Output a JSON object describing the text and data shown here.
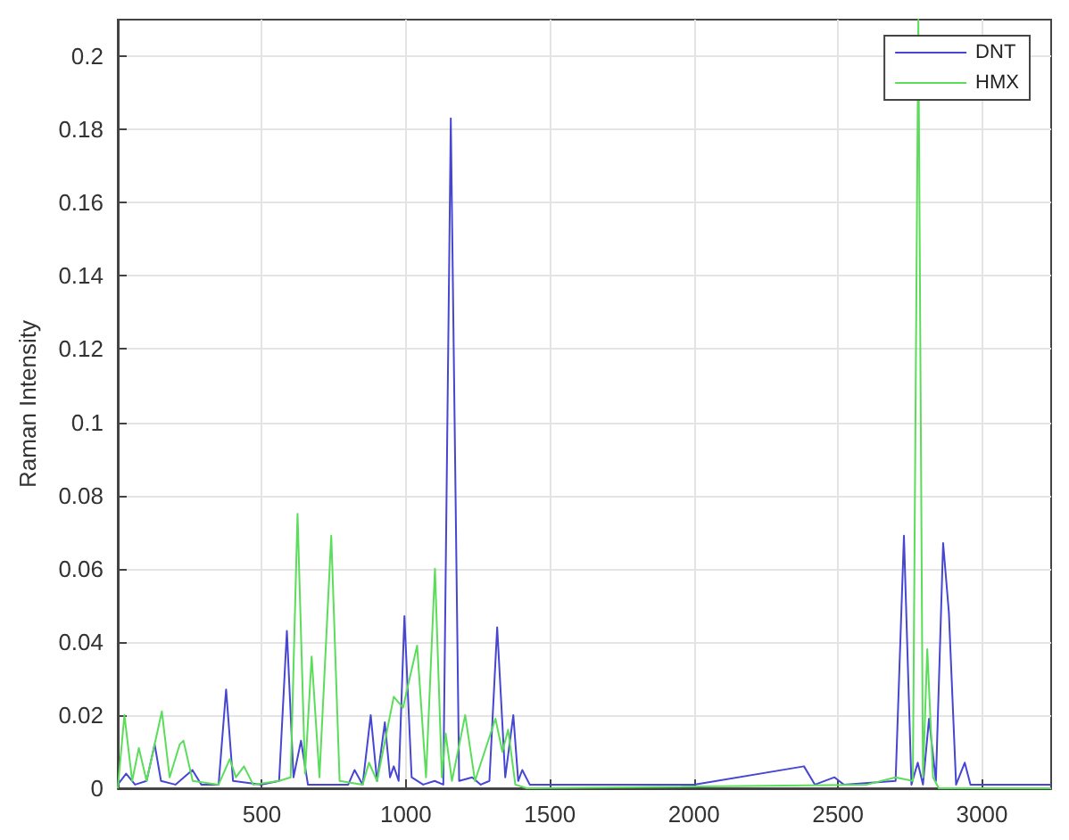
{
  "chart_data": {
    "type": "line",
    "ylabel": "Raman Intensity",
    "series": [
      {
        "name": "DNT",
        "color": "#4646d2",
        "x": [
          0,
          29,
          60,
          100,
          128,
          150,
          200,
          259,
          290,
          350,
          376,
          400,
          500,
          560,
          587,
          610,
          636,
          660,
          750,
          800,
          822,
          850,
          878,
          900,
          927,
          945,
          958,
          975,
          995,
          1020,
          1060,
          1100,
          1130,
          1156,
          1185,
          1230,
          1260,
          1290,
          1317,
          1345,
          1373,
          1390,
          1404,
          1430,
          2000,
          2382,
          2420,
          2488,
          2520,
          2700,
          2729,
          2755,
          2777,
          2795,
          2816,
          2840,
          2865,
          2885,
          2910,
          2940,
          2960,
          3240
        ],
        "values": [
          0.001,
          0.004,
          0.001,
          0.002,
          0.012,
          0.002,
          0.001,
          0.005,
          0.001,
          0.001,
          0.027,
          0.002,
          0.001,
          0.002,
          0.043,
          0.003,
          0.013,
          0.001,
          0.001,
          0.001,
          0.005,
          0.001,
          0.02,
          0.002,
          0.018,
          0.003,
          0.006,
          0.002,
          0.047,
          0.003,
          0.001,
          0.002,
          0.001,
          0.183,
          0.002,
          0.003,
          0.001,
          0.002,
          0.044,
          0.003,
          0.02,
          0.002,
          0.005,
          0.001,
          0.001,
          0.006,
          0.001,
          0.003,
          0.001,
          0.002,
          0.069,
          0.001,
          0.007,
          0.001,
          0.019,
          0.002,
          0.067,
          0.048,
          0.001,
          0.007,
          0.001,
          0.001
        ]
      },
      {
        "name": "HMX",
        "color": "#5ade5a",
        "x": [
          0,
          23,
          50,
          73,
          100,
          153,
          180,
          215,
          228,
          260,
          350,
          389,
          410,
          438,
          470,
          560,
          600,
          624,
          650,
          673,
          700,
          741,
          770,
          850,
          872,
          900,
          958,
          990,
          1039,
          1070,
          1101,
          1125,
          1138,
          1160,
          1206,
          1240,
          1311,
          1335,
          1355,
          1380,
          1420,
          2600,
          2700,
          2760,
          2779,
          2795,
          2810,
          2830,
          2850,
          3240
        ],
        "values": [
          0,
          0.02,
          0.002,
          0.011,
          0.002,
          0.021,
          0.003,
          0.012,
          0.013,
          0.002,
          0.001,
          0.008,
          0.003,
          0.006,
          0.001,
          0.002,
          0.003,
          0.075,
          0.004,
          0.036,
          0.003,
          0.069,
          0.002,
          0.001,
          0.007,
          0.002,
          0.025,
          0.022,
          0.039,
          0.003,
          0.06,
          0.003,
          0.015,
          0.002,
          0.02,
          0.002,
          0.019,
          0.01,
          0.016,
          0.001,
          0,
          0.001,
          0.003,
          0.002,
          0.21,
          0.003,
          0.038,
          0.003,
          0,
          0
        ]
      }
    ],
    "xlim": [
      0,
      3240
    ],
    "ylim": [
      0,
      0.21
    ],
    "xticks": [
      500,
      1000,
      1500,
      2000,
      2500,
      3000
    ],
    "yticks": [
      0,
      0.02,
      0.04,
      0.06,
      0.08,
      0.1,
      0.12,
      0.14,
      0.16,
      0.18,
      0.2
    ],
    "grid": true,
    "legend": "top right",
    "marker": "none",
    "line_style": "solid"
  }
}
